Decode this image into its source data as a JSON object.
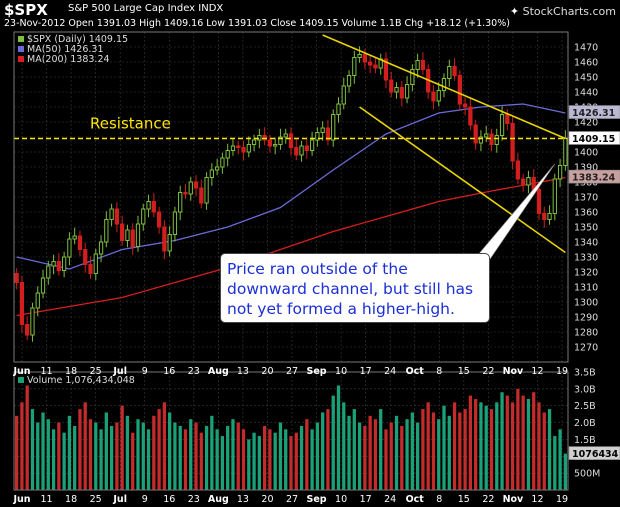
{
  "header": {
    "symbol": "$SPX",
    "description": "S&P 500 Large Cap Index",
    "exchange": "INDX",
    "quote": "23-Nov-2012   Open 1391.03  High 1409.16  Low 1391.03  Close 1409.15  Volume 1.1B  Chg +18.12 (+1.30%)",
    "brand": "StockCharts.com",
    "brand_icon": "star-icon"
  },
  "legend": {
    "price": "$SPX (Daily) 1409.15",
    "ma50": "MA(50) 1426.31",
    "ma200": "MA(200) 1383.24",
    "volume": "Volume 1,076,434,048"
  },
  "colors": {
    "up": "#7fbf3f",
    "down": "#d21e1e",
    "ma50": "#6a6ad8",
    "ma200": "#d81e1e",
    "resistance": "#ffe600",
    "channel": "#e8d400",
    "volume_up": "#1aa178",
    "volume_down": "#c42b2b",
    "grid": "#3a3a3a"
  },
  "annotations": {
    "resistance_label": "Resistance",
    "callout": "Price ran outside of the downward channel, but still has not yet formed a higher-high."
  },
  "value_tags": {
    "last": "1409.15",
    "ma50": "1426.31",
    "ma200": "1383.24",
    "volume": "1076434"
  },
  "chart_data": {
    "type": "candlestick",
    "period": "Daily",
    "ylim": [
      1260,
      1480
    ],
    "y_ticks": [
      1270,
      1280,
      1290,
      1300,
      1310,
      1320,
      1330,
      1340,
      1350,
      1360,
      1370,
      1380,
      1390,
      1400,
      1410,
      1420,
      1430,
      1440,
      1450,
      1460,
      1470
    ],
    "x_ticks": [
      "Jun",
      "11",
      "18",
      "25",
      "Jul",
      "9",
      "16",
      "23",
      "Aug",
      "13",
      "20",
      "27",
      "Sep",
      "10",
      "17",
      "24",
      "Oct",
      "8",
      "15",
      "22",
      "Nov",
      "12",
      "19"
    ],
    "resistance_level": 1409,
    "last_close": 1409.15,
    "closes": [
      1313,
      1285,
      1278,
      1296,
      1306,
      1316,
      1324,
      1327,
      1321,
      1330,
      1342,
      1344,
      1335,
      1325,
      1319,
      1332,
      1340,
      1355,
      1362,
      1352,
      1341,
      1348,
      1337,
      1352,
      1362,
      1367,
      1360,
      1350,
      1334,
      1345,
      1360,
      1373,
      1372,
      1380,
      1376,
      1366,
      1383,
      1388,
      1390,
      1396,
      1401,
      1404,
      1403,
      1400,
      1405,
      1408,
      1411,
      1408,
      1404,
      1405,
      1410,
      1412,
      1403,
      1398,
      1404,
      1401,
      1408,
      1413,
      1416,
      1408,
      1425,
      1432,
      1444,
      1451,
      1463,
      1465,
      1460,
      1458,
      1456,
      1462,
      1448,
      1440,
      1443,
      1436,
      1445,
      1455,
      1461,
      1455,
      1440,
      1434,
      1441,
      1449,
      1457,
      1451,
      1432,
      1430,
      1418,
      1406,
      1410,
      1412,
      1405,
      1411,
      1425,
      1419,
      1394,
      1382,
      1378,
      1383,
      1375,
      1359,
      1355,
      1359,
      1382,
      1391,
      1409
    ],
    "ma50": {
      "points": [
        [
          0,
          1330
        ],
        [
          10,
          1322
        ],
        [
          20,
          1335
        ],
        [
          30,
          1341
        ],
        [
          40,
          1350
        ],
        [
          50,
          1363
        ],
        [
          60,
          1388
        ],
        [
          70,
          1412
        ],
        [
          80,
          1426
        ],
        [
          88,
          1430
        ],
        [
          96,
          1432
        ],
        [
          104,
          1426
        ]
      ]
    },
    "ma200": {
      "points": [
        [
          0,
          1291
        ],
        [
          20,
          1303
        ],
        [
          40,
          1323
        ],
        [
          60,
          1347
        ],
        [
          70,
          1357
        ],
        [
          80,
          1367
        ],
        [
          90,
          1374
        ],
        [
          104,
          1383
        ]
      ]
    },
    "channel": {
      "upper": [
        [
          58,
          1478
        ],
        [
          104,
          1409
        ]
      ],
      "lower": [
        [
          65,
          1430
        ],
        [
          104,
          1333
        ]
      ]
    },
    "volume": {
      "ylim": [
        0,
        3.5
      ],
      "y_ticks": [
        "3.5B",
        "3.0B",
        "2.5B",
        "2.0B",
        "1.5B",
        "1.0B",
        "500M"
      ],
      "values": [
        2.2,
        2.6,
        3.1,
        2.4,
        2.0,
        2.3,
        2.1,
        1.8,
        2.0,
        1.7,
        2.2,
        1.9,
        2.4,
        2.6,
        2.1,
        2.0,
        1.8,
        2.3,
        1.9,
        2.0,
        2.5,
        2.2,
        1.7,
        2.1,
        2.0,
        1.8,
        2.2,
        2.4,
        2.6,
        2.3,
        2.0,
        1.9,
        1.8,
        2.1,
        2.0,
        1.7,
        1.9,
        2.2,
        1.8,
        1.6,
        1.9,
        2.1,
        2.0,
        1.8,
        1.5,
        1.7,
        1.6,
        1.9,
        1.8,
        1.7,
        2.0,
        1.8,
        1.6,
        1.7,
        1.9,
        2.1,
        1.8,
        2.0,
        2.3,
        2.4,
        2.8,
        3.1,
        2.6,
        2.2,
        2.4,
        2.0,
        1.9,
        2.2,
        2.1,
        2.4,
        1.8,
        2.0,
        2.2,
        1.9,
        2.1,
        2.3,
        2.0,
        2.4,
        2.6,
        2.3,
        2.1,
        2.5,
        2.2,
        2.6,
        2.3,
        2.4,
        2.8,
        2.7,
        2.6,
        2.5,
        2.4,
        2.6,
        2.9,
        2.8,
        2.6,
        3.0,
        2.8,
        2.7,
        2.9,
        2.6,
        2.3,
        2.4,
        1.6,
        1.8,
        1.08
      ]
    }
  }
}
